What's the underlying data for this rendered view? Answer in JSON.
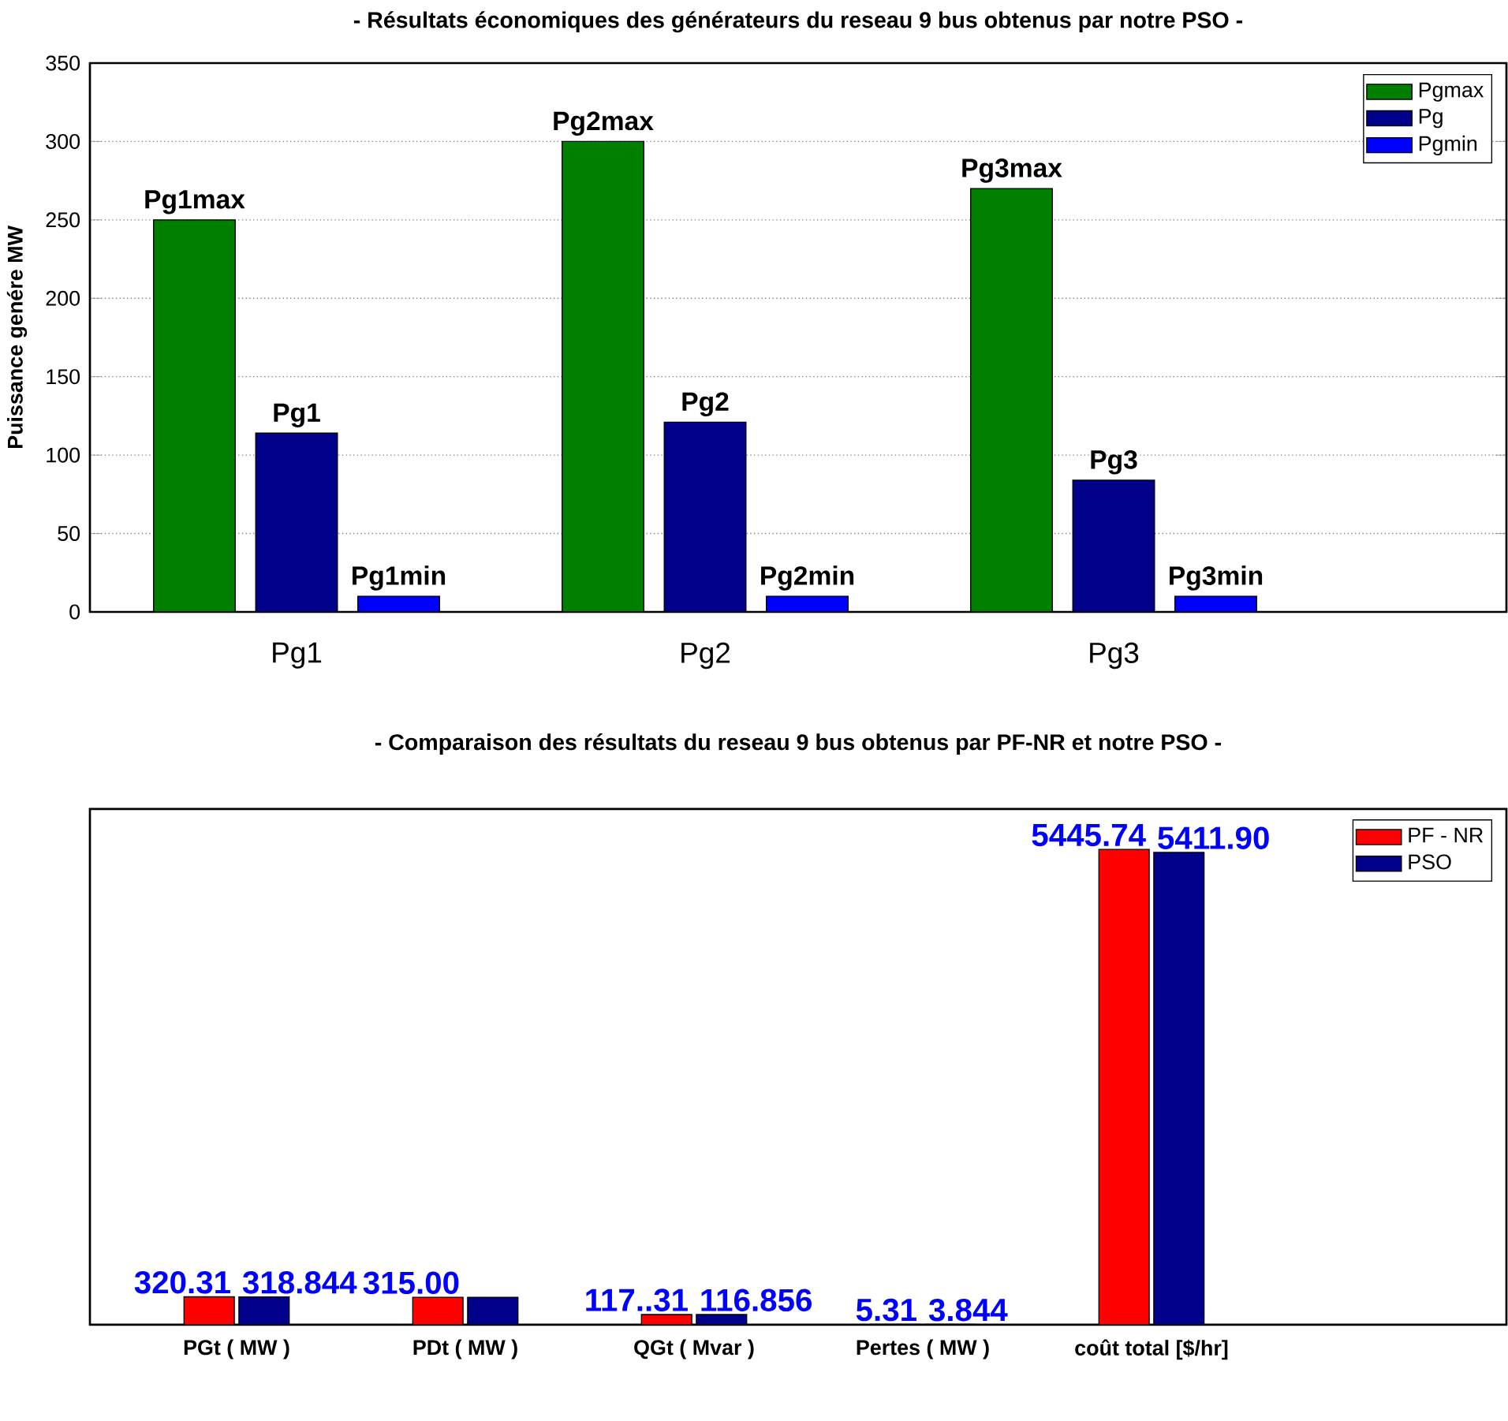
{
  "chart_data": [
    {
      "type": "bar",
      "title": "- Résultats économiques des générateurs du reseau 9 bus obtenus par notre PSO -",
      "ylabel": "Puissance genére MW",
      "categories": [
        "Pg1",
        "Pg2",
        "Pg3"
      ],
      "series": [
        {
          "name": "Pgmax",
          "color": "#007f00",
          "values": [
            250,
            300,
            270
          ],
          "value_labels": [
            "Pg1max",
            "Pg2max",
            "Pg3max"
          ]
        },
        {
          "name": "Pg",
          "color": "#00008b",
          "values": [
            114,
            121,
            84
          ],
          "value_labels": [
            "Pg1",
            "Pg2",
            "Pg3"
          ]
        },
        {
          "name": "Pgmin",
          "color": "#0000ff",
          "values": [
            10,
            10,
            10
          ],
          "value_labels": [
            "Pg1min",
            "Pg2min",
            "Pg3min"
          ]
        }
      ],
      "ylim": [
        0,
        350
      ],
      "yticks": [
        0,
        50,
        100,
        150,
        200,
        250,
        300,
        350
      ],
      "grid": "y",
      "legend": "top right"
    },
    {
      "type": "bar",
      "title": "- Comparaison des résultats du reseau 9 bus obtenus par PF-NR et notre PSO -",
      "categories": [
        "PGt ( MW )",
        "PDt ( MW )",
        "QGt ( Mvar )",
        "Pertes ( MW )",
        "coût total [$/hr]"
      ],
      "series": [
        {
          "name": "PF - NR",
          "color": "#ff0000",
          "values": [
            320.31,
            315.0,
            117.31,
            5.31,
            5445.74
          ],
          "value_labels": [
            "320.31",
            "315.00",
            "117..31",
            "5.31",
            "5445.74"
          ]
        },
        {
          "name": "PSO",
          "color": "#00008b",
          "values": [
            318.844,
            315.0,
            116.856,
            3.844,
            5411.9
          ],
          "value_labels": [
            "318.844",
            null,
            "116.856",
            "3.844",
            "5411.90"
          ]
        }
      ],
      "legend": "top right"
    }
  ]
}
